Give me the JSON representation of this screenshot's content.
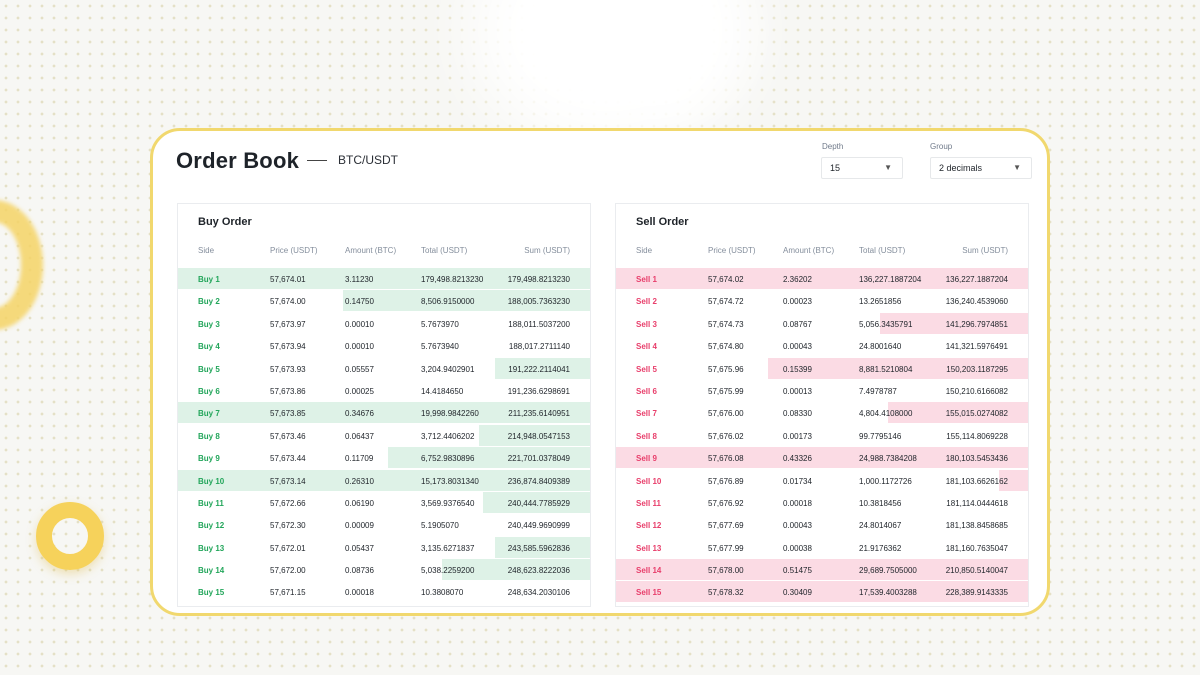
{
  "header": {
    "title": "Order Book",
    "pair": "BTC/USDT"
  },
  "controls": {
    "depth": {
      "label": "Depth",
      "value": "15"
    },
    "group": {
      "label": "Group",
      "value": "2 decimals"
    }
  },
  "columns": [
    "Side",
    "Price (USDT)",
    "Amount (BTC)",
    "Total (USDT)",
    "Sum (USDT)"
  ],
  "colors": {
    "buy": "#23a65b",
    "sell": "#e83e6b",
    "buy_fill": "#def2e7",
    "sell_fill": "#fbdbe4",
    "card_border": "#f1d86e"
  },
  "buy": {
    "title": "Buy Order",
    "rows": [
      {
        "side": "Buy 1",
        "price": "57,674.01",
        "amount": "3.11230",
        "total": "179,498.8213230",
        "sum": "179,498.8213230",
        "fill": 1.0
      },
      {
        "side": "Buy 2",
        "price": "57,674.00",
        "amount": "0.14750",
        "total": "8,506.9150000",
        "sum": "188,005.7363230",
        "fill": 0.6
      },
      {
        "side": "Buy 3",
        "price": "57,673.97",
        "amount": "0.00010",
        "total": "5.7673970",
        "sum": "188,011.5037200",
        "fill": 0
      },
      {
        "side": "Buy 4",
        "price": "57,673.94",
        "amount": "0.00010",
        "total": "5.7673940",
        "sum": "188,017.2711140",
        "fill": 0
      },
      {
        "side": "Buy 5",
        "price": "57,673.93",
        "amount": "0.05557",
        "total": "3,204.9402901",
        "sum": "191,222.2114041",
        "fill": 0.23
      },
      {
        "side": "Buy 6",
        "price": "57,673.86",
        "amount": "0.00025",
        "total": "14.4184650",
        "sum": "191,236.6298691",
        "fill": 0
      },
      {
        "side": "Buy 7",
        "price": "57,673.85",
        "amount": "0.34676",
        "total": "19,998.9842260",
        "sum": "211,235.6140951",
        "fill": 1.0
      },
      {
        "side": "Buy 8",
        "price": "57,673.46",
        "amount": "0.06437",
        "total": "3,712.4406202",
        "sum": "214,948.0547153",
        "fill": 0.27
      },
      {
        "side": "Buy 9",
        "price": "57,673.44",
        "amount": "0.11709",
        "total": "6,752.9830896",
        "sum": "221,701.0378049",
        "fill": 0.49
      },
      {
        "side": "Buy 10",
        "price": "57,673.14",
        "amount": "0.26310",
        "total": "15,173.8031340",
        "sum": "236,874.8409389",
        "fill": 1.0
      },
      {
        "side": "Buy 11",
        "price": "57,672.66",
        "amount": "0.06190",
        "total": "3,569.9376540",
        "sum": "240,444.7785929",
        "fill": 0.26
      },
      {
        "side": "Buy 12",
        "price": "57,672.30",
        "amount": "0.00009",
        "total": "5.1905070",
        "sum": "240,449.9690999",
        "fill": 0
      },
      {
        "side": "Buy 13",
        "price": "57,672.01",
        "amount": "0.05437",
        "total": "3,135.6271837",
        "sum": "243,585.5962836",
        "fill": 0.23
      },
      {
        "side": "Buy 14",
        "price": "57,672.00",
        "amount": "0.08736",
        "total": "5,038.2259200",
        "sum": "248,623.8222036",
        "fill": 0.36
      },
      {
        "side": "Buy 15",
        "price": "57,671.15",
        "amount": "0.00018",
        "total": "10.3808070",
        "sum": "248,634.2030106",
        "fill": 0
      }
    ]
  },
  "sell": {
    "title": "Sell Order",
    "rows": [
      {
        "side": "Sell 1",
        "price": "57,674.02",
        "amount": "2.36202",
        "total": "136,227.1887204",
        "sum": "136,227.1887204",
        "fill": 1.0
      },
      {
        "side": "Sell 2",
        "price": "57,674.72",
        "amount": "0.00023",
        "total": "13.2651856",
        "sum": "136,240.4539060",
        "fill": 0
      },
      {
        "side": "Sell 3",
        "price": "57,674.73",
        "amount": "0.08767",
        "total": "5,056.3435791",
        "sum": "141,296.7974851",
        "fill": 0.36
      },
      {
        "side": "Sell 4",
        "price": "57,674.80",
        "amount": "0.00043",
        "total": "24.8001640",
        "sum": "141,321.5976491",
        "fill": 0
      },
      {
        "side": "Sell 5",
        "price": "57,675.96",
        "amount": "0.15399",
        "total": "8,881.5210804",
        "sum": "150,203.1187295",
        "fill": 0.63
      },
      {
        "side": "Sell 6",
        "price": "57,675.99",
        "amount": "0.00013",
        "total": "7.4978787",
        "sum": "150,210.6166082",
        "fill": 0
      },
      {
        "side": "Sell 7",
        "price": "57,676.00",
        "amount": "0.08330",
        "total": "4,804.4108000",
        "sum": "155,015.0274082",
        "fill": 0.34
      },
      {
        "side": "Sell 8",
        "price": "57,676.02",
        "amount": "0.00173",
        "total": "99.7795146",
        "sum": "155,114.8069228",
        "fill": 0
      },
      {
        "side": "Sell 9",
        "price": "57,676.08",
        "amount": "0.43326",
        "total": "24,988.7384208",
        "sum": "180,103.5453436",
        "fill": 1.0
      },
      {
        "side": "Sell 10",
        "price": "57,676.89",
        "amount": "0.01734",
        "total": "1,000.1172726",
        "sum": "181,103.6626162",
        "fill": 0.07
      },
      {
        "side": "Sell 11",
        "price": "57,676.92",
        "amount": "0.00018",
        "total": "10.3818456",
        "sum": "181,114.0444618",
        "fill": 0
      },
      {
        "side": "Sell 12",
        "price": "57,677.69",
        "amount": "0.00043",
        "total": "24.8014067",
        "sum": "181,138.8458685",
        "fill": 0
      },
      {
        "side": "Sell 13",
        "price": "57,677.99",
        "amount": "0.00038",
        "total": "21.9176362",
        "sum": "181,160.7635047",
        "fill": 0
      },
      {
        "side": "Sell 14",
        "price": "57,678.00",
        "amount": "0.51475",
        "total": "29,689.7505000",
        "sum": "210,850.5140047",
        "fill": 1.0
      },
      {
        "side": "Sell 15",
        "price": "57,678.32",
        "amount": "0.30409",
        "total": "17,539.4003288",
        "sum": "228,389.9143335",
        "fill": 1.0
      }
    ]
  }
}
